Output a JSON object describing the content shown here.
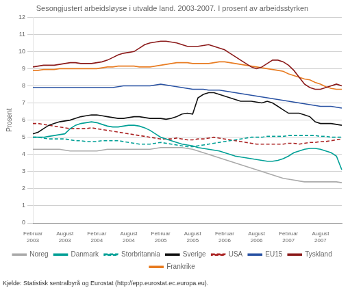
{
  "chart_data": {
    "type": "line",
    "title": "Sesongjustert arbeidsløyse i utvalde land. 2003-2007. I prosent av arbeidsstyrken",
    "ylabel": "Prosent",
    "source": "Kjelde: Statistisk sentralbyrå og Eurostat (http://epp.eurostat.ec.europa.eu).",
    "categories": [
      "Februar\n2003",
      null,
      null,
      null,
      null,
      null,
      "August\n2003",
      null,
      null,
      null,
      null,
      null,
      "Februar\n2004",
      null,
      null,
      null,
      null,
      null,
      "August\n2004",
      null,
      null,
      null,
      null,
      null,
      "Februar\n2005",
      null,
      null,
      null,
      null,
      null,
      "August\n2005",
      null,
      null,
      null,
      null,
      null,
      "Februar\n2006",
      null,
      null,
      null,
      null,
      null,
      "August\n2006",
      null,
      null,
      null,
      null,
      null,
      "Februar\n2007",
      null,
      null,
      null,
      null,
      null,
      "August\n2007",
      null,
      null,
      null,
      null
    ],
    "ylim": [
      0,
      12
    ],
    "yticks": [
      0,
      1,
      2,
      3,
      4,
      5,
      6,
      7,
      8,
      9,
      10,
      11,
      12
    ],
    "grid": true,
    "legend": "bottom",
    "series": [
      {
        "name": "Noreg",
        "color": "#aaaaaa",
        "line_style": "solid",
        "values": [
          4.3,
          4.3,
          4.3,
          4.3,
          4.3,
          4.3,
          4.25,
          4.2,
          4.2,
          4.2,
          4.2,
          4.2,
          4.2,
          4.25,
          4.3,
          4.3,
          4.3,
          4.3,
          4.3,
          4.3,
          4.3,
          4.3,
          4.3,
          4.35,
          4.4,
          4.4,
          4.4,
          4.4,
          4.4,
          4.35,
          4.3,
          4.2,
          4.1,
          4.0,
          3.9,
          3.8,
          3.7,
          3.6,
          3.5,
          3.4,
          3.3,
          3.2,
          3.1,
          3.0,
          2.9,
          2.8,
          2.7,
          2.6,
          2.55,
          2.5,
          2.45,
          2.4,
          2.4,
          2.4,
          2.4,
          2.4,
          2.4,
          2.4,
          2.35
        ]
      },
      {
        "name": "Danmark",
        "color": "#00a096",
        "line_style": "solid",
        "values": [
          5.0,
          5.0,
          5.0,
          5.05,
          5.1,
          5.15,
          5.2,
          5.5,
          5.7,
          5.8,
          5.85,
          5.9,
          5.85,
          5.75,
          5.65,
          5.6,
          5.6,
          5.65,
          5.7,
          5.7,
          5.65,
          5.55,
          5.4,
          5.2,
          5.0,
          4.9,
          4.8,
          4.7,
          4.6,
          4.55,
          4.5,
          4.4,
          4.35,
          4.3,
          4.25,
          4.2,
          4.1,
          4.0,
          3.9,
          3.85,
          3.8,
          3.75,
          3.7,
          3.65,
          3.6,
          3.6,
          3.65,
          3.75,
          3.9,
          4.1,
          4.2,
          4.3,
          4.35,
          4.35,
          4.3,
          4.2,
          4.1,
          3.9,
          3.1
        ]
      },
      {
        "name": "Storbritannia",
        "color": "#00a096",
        "line_style": "dashed",
        "values": [
          5.0,
          5.0,
          4.95,
          4.9,
          4.9,
          4.9,
          4.9,
          4.85,
          4.8,
          4.8,
          4.75,
          4.75,
          4.75,
          4.8,
          4.8,
          4.8,
          4.8,
          4.75,
          4.7,
          4.65,
          4.6,
          4.6,
          4.6,
          4.65,
          4.7,
          4.65,
          4.6,
          4.55,
          4.5,
          4.45,
          4.45,
          4.5,
          4.55,
          4.6,
          4.65,
          4.7,
          4.75,
          4.8,
          4.85,
          4.9,
          4.95,
          5.0,
          5.0,
          5.0,
          5.05,
          5.05,
          5.05,
          5.05,
          5.1,
          5.1,
          5.1,
          5.1,
          5.1,
          5.1,
          5.05,
          5.05,
          5.0,
          5.0,
          5.0
        ]
      },
      {
        "name": "Sverige",
        "color": "#111111",
        "line_style": "solid",
        "values": [
          5.2,
          5.3,
          5.5,
          5.7,
          5.8,
          5.9,
          5.95,
          6.0,
          6.1,
          6.2,
          6.25,
          6.3,
          6.3,
          6.25,
          6.2,
          6.15,
          6.1,
          6.1,
          6.15,
          6.2,
          6.2,
          6.15,
          6.1,
          6.1,
          6.1,
          6.05,
          6.1,
          6.2,
          6.35,
          6.4,
          6.35,
          7.3,
          7.5,
          7.6,
          7.6,
          7.5,
          7.4,
          7.3,
          7.2,
          7.1,
          7.1,
          7.1,
          7.05,
          7.0,
          7.1,
          7.0,
          6.8,
          6.6,
          6.4,
          6.4,
          6.4,
          6.3,
          6.2,
          5.9,
          5.8,
          5.8,
          5.8,
          5.75,
          5.7
        ]
      },
      {
        "name": "USA",
        "color": "#aa2222",
        "line_style": "dashed",
        "values": [
          5.8,
          5.8,
          5.75,
          5.7,
          5.65,
          5.6,
          5.55,
          5.5,
          5.5,
          5.5,
          5.5,
          5.55,
          5.5,
          5.45,
          5.4,
          5.35,
          5.3,
          5.25,
          5.2,
          5.15,
          5.1,
          5.05,
          5.0,
          4.95,
          4.9,
          4.9,
          4.9,
          4.95,
          4.9,
          4.85,
          4.85,
          4.9,
          4.9,
          4.95,
          5.0,
          4.95,
          4.9,
          4.85,
          4.8,
          4.75,
          4.7,
          4.65,
          4.6,
          4.6,
          4.6,
          4.6,
          4.6,
          4.6,
          4.65,
          4.65,
          4.6,
          4.65,
          4.7,
          4.7,
          4.75,
          4.75,
          4.8,
          4.85,
          4.9
        ]
      },
      {
        "name": "EU15",
        "color": "#2952a3",
        "line_style": "solid",
        "values": [
          7.9,
          7.9,
          7.9,
          7.9,
          7.9,
          7.9,
          7.9,
          7.9,
          7.9,
          7.9,
          7.9,
          7.9,
          7.9,
          7.9,
          7.9,
          7.9,
          7.95,
          8.0,
          8.0,
          8.0,
          8.0,
          8.0,
          8.0,
          8.05,
          8.1,
          8.05,
          8.0,
          7.95,
          7.9,
          7.85,
          7.8,
          7.8,
          7.8,
          7.75,
          7.75,
          7.75,
          7.7,
          7.65,
          7.6,
          7.55,
          7.5,
          7.45,
          7.4,
          7.35,
          7.3,
          7.25,
          7.2,
          7.15,
          7.1,
          7.05,
          7.0,
          6.95,
          6.9,
          6.85,
          6.8,
          6.8,
          6.8,
          6.75,
          6.7
        ]
      },
      {
        "name": "Tyskland",
        "color": "#8b1a1a",
        "line_style": "solid",
        "values": [
          9.1,
          9.15,
          9.2,
          9.2,
          9.2,
          9.25,
          9.3,
          9.35,
          9.35,
          9.3,
          9.3,
          9.3,
          9.35,
          9.4,
          9.5,
          9.65,
          9.8,
          9.9,
          9.95,
          10.0,
          10.2,
          10.4,
          10.5,
          10.55,
          10.6,
          10.6,
          10.55,
          10.5,
          10.4,
          10.3,
          10.3,
          10.3,
          10.35,
          10.4,
          10.3,
          10.2,
          10.1,
          9.9,
          9.7,
          9.5,
          9.3,
          9.1,
          9.0,
          9.1,
          9.3,
          9.5,
          9.5,
          9.4,
          9.2,
          8.9,
          8.5,
          8.1,
          7.9,
          7.8,
          7.8,
          7.9,
          8.0,
          8.1,
          8.0
        ]
      },
      {
        "name": "Frankrike",
        "color": "#e87c22",
        "line_style": "solid",
        "values": [
          8.9,
          8.9,
          8.95,
          8.95,
          8.95,
          9.0,
          9.0,
          9.0,
          9.0,
          9.0,
          9.0,
          9.0,
          9.0,
          9.05,
          9.1,
          9.1,
          9.15,
          9.15,
          9.15,
          9.15,
          9.1,
          9.1,
          9.1,
          9.15,
          9.2,
          9.25,
          9.3,
          9.35,
          9.35,
          9.35,
          9.3,
          9.3,
          9.3,
          9.3,
          9.35,
          9.4,
          9.4,
          9.35,
          9.3,
          9.25,
          9.2,
          9.15,
          9.1,
          9.05,
          9.0,
          8.95,
          8.9,
          8.85,
          8.7,
          8.6,
          8.5,
          8.4,
          8.35,
          8.2,
          8.1,
          7.95,
          7.85,
          7.8,
          7.8
        ]
      }
    ]
  }
}
